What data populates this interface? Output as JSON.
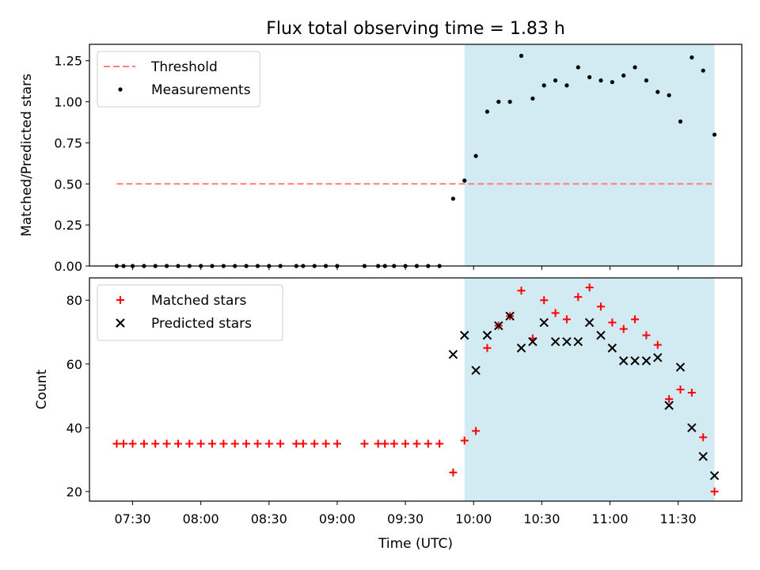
{
  "figure": {
    "title": "Flux total observing time = 1.83 h",
    "xlabel": "Time (UTC)",
    "xticks": [
      "07:30",
      "08:00",
      "08:30",
      "09:00",
      "09:30",
      "10:00",
      "10:30",
      "11:00",
      "11:30"
    ],
    "shade_color": "#add8e6",
    "shade_range": [
      "09:56",
      "11:46"
    ]
  },
  "chart_data": [
    {
      "type": "scatter",
      "ylabel": "Matched/Predicted stars",
      "ylim": [
        0,
        1.35
      ],
      "yticks": [
        "0.00",
        "0.25",
        "0.50",
        "0.75",
        "1.00",
        "1.25"
      ],
      "legend_position": "top-left",
      "threshold": {
        "name": "Threshold",
        "value": 0.5,
        "x_range": [
          "07:23",
          "11:46"
        ],
        "color": "#ff7f7f",
        "style": "dashed"
      },
      "series": [
        {
          "name": "Measurements",
          "color": "#000000",
          "marker": "dot",
          "x": [
            "07:23",
            "07:26",
            "07:30",
            "07:35",
            "07:40",
            "07:45",
            "07:50",
            "07:55",
            "08:00",
            "08:05",
            "08:10",
            "08:15",
            "08:20",
            "08:25",
            "08:30",
            "08:35",
            "08:42",
            "08:45",
            "08:50",
            "08:55",
            "09:00",
            "09:12",
            "09:18",
            "09:21",
            "09:25",
            "09:30",
            "09:35",
            "09:40",
            "09:45",
            "09:51",
            "09:56",
            "10:01",
            "10:06",
            "10:11",
            "10:16",
            "10:21",
            "10:26",
            "10:31",
            "10:36",
            "10:41",
            "10:46",
            "10:51",
            "10:56",
            "11:01",
            "11:06",
            "11:11",
            "11:16",
            "11:21",
            "11:26",
            "11:31",
            "11:36",
            "11:41",
            "11:46"
          ],
          "y": [
            0,
            0,
            0,
            0,
            0,
            0,
            0,
            0,
            0,
            0,
            0,
            0,
            0,
            0,
            0,
            0,
            0,
            0,
            0,
            0,
            0,
            0,
            0,
            0,
            0,
            0,
            0,
            0,
            0,
            0.41,
            0.52,
            0.67,
            0.94,
            1.0,
            1.0,
            1.28,
            1.02,
            1.1,
            1.13,
            1.1,
            1.21,
            1.15,
            1.13,
            1.12,
            1.16,
            1.21,
            1.13,
            1.06,
            1.04,
            0.88,
            1.27,
            1.19,
            0.8
          ]
        }
      ]
    },
    {
      "type": "scatter",
      "ylabel": "Count",
      "ylim": [
        17,
        87
      ],
      "yticks": [
        "20",
        "40",
        "60",
        "80"
      ],
      "legend_position": "top-left",
      "series": [
        {
          "name": "Matched stars",
          "color": "#ff0000",
          "marker": "plus",
          "x": [
            "07:23",
            "07:26",
            "07:30",
            "07:35",
            "07:40",
            "07:45",
            "07:50",
            "07:55",
            "08:00",
            "08:05",
            "08:10",
            "08:15",
            "08:20",
            "08:25",
            "08:30",
            "08:35",
            "08:42",
            "08:45",
            "08:50",
            "08:55",
            "09:00",
            "09:12",
            "09:18",
            "09:21",
            "09:25",
            "09:30",
            "09:35",
            "09:40",
            "09:45",
            "09:51",
            "09:56",
            "10:01",
            "10:06",
            "10:11",
            "10:16",
            "10:21",
            "10:26",
            "10:31",
            "10:36",
            "10:41",
            "10:46",
            "10:51",
            "10:56",
            "11:01",
            "11:06",
            "11:11",
            "11:16",
            "11:21",
            "11:26",
            "11:31",
            "11:36",
            "11:41",
            "11:46"
          ],
          "y": [
            35,
            35,
            35,
            35,
            35,
            35,
            35,
            35,
            35,
            35,
            35,
            35,
            35,
            35,
            35,
            35,
            35,
            35,
            35,
            35,
            35,
            35,
            35,
            35,
            35,
            35,
            35,
            35,
            35,
            26,
            36,
            39,
            65,
            72,
            75,
            83,
            68,
            80,
            76,
            74,
            81,
            84,
            78,
            73,
            71,
            74,
            69,
            66,
            49,
            52,
            51,
            37,
            20
          ]
        },
        {
          "name": "Predicted stars",
          "color": "#000000",
          "marker": "x",
          "x": [
            "09:51",
            "09:56",
            "10:01",
            "10:06",
            "10:11",
            "10:16",
            "10:21",
            "10:26",
            "10:31",
            "10:36",
            "10:41",
            "10:46",
            "10:51",
            "10:56",
            "11:01",
            "11:06",
            "11:11",
            "11:16",
            "11:21",
            "11:26",
            "11:31",
            "11:36",
            "11:41",
            "11:46"
          ],
          "y": [
            63,
            69,
            58,
            69,
            72,
            75,
            65,
            67,
            73,
            67,
            67,
            67,
            73,
            69,
            65,
            61,
            61,
            61,
            62,
            47,
            59,
            40,
            31,
            25
          ]
        }
      ]
    }
  ]
}
